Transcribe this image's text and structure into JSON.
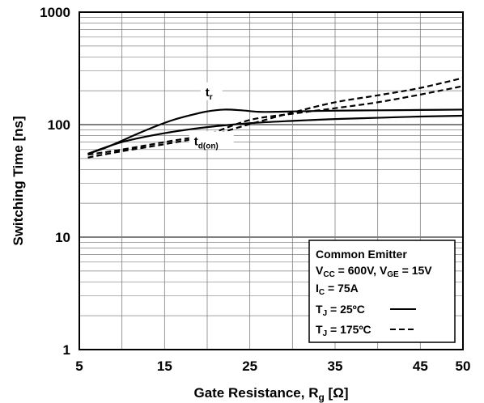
{
  "chart_data": {
    "type": "line",
    "x_scale": "linear",
    "y_scale": "log",
    "xlim": [
      5,
      50
    ],
    "ylim": [
      1,
      1000
    ],
    "grid": true,
    "xlabel": "Gate Resistance, Rg [Ω]",
    "xlabel_parts": {
      "main": "Gate Resistance, R",
      "sub": "g",
      "tail": " [Ω]"
    },
    "ylabel": "Switching Time [ns]",
    "x_ticks": [
      {
        "value": 5,
        "label": "5"
      },
      {
        "value": 15,
        "label": "15"
      },
      {
        "value": 25,
        "label": "25"
      },
      {
        "value": 35,
        "label": "35"
      },
      {
        "value": 45,
        "label": "45"
      },
      {
        "value": 50,
        "label": "50"
      }
    ],
    "y_ticks": [
      {
        "value": 1,
        "label": "1"
      },
      {
        "value": 10,
        "label": "10"
      },
      {
        "value": 100,
        "label": "100"
      },
      {
        "value": 1000,
        "label": "1000"
      }
    ],
    "x_minor": [
      10,
      20,
      30,
      40
    ],
    "series": [
      {
        "label_main": "t",
        "label_sub": "r",
        "tj": "25",
        "style": "solid",
        "x": [
          6,
          8,
          10,
          12,
          14,
          16,
          18,
          20,
          22,
          24,
          26,
          28,
          30,
          35,
          40,
          45,
          50
        ],
        "y": [
          55,
          62,
          72,
          84,
          97,
          110,
          121,
          131,
          136,
          134,
          130,
          130,
          131,
          133,
          134,
          135,
          136
        ]
      },
      {
        "label_main": "t",
        "label_sub": "r",
        "tj": "175",
        "style": "dashed",
        "x": [
          6,
          10,
          15,
          20,
          25,
          30,
          35,
          40,
          45,
          50
        ],
        "y": [
          54,
          60,
          70,
          82,
          110,
          125,
          140,
          158,
          185,
          220
        ]
      },
      {
        "label_main": "t",
        "label_sub": "d(on)",
        "tj": "25",
        "style": "solid",
        "x": [
          6,
          10,
          15,
          20,
          25,
          30,
          35,
          40,
          45,
          50
        ],
        "y": [
          55,
          70,
          84,
          95,
          103,
          108,
          112,
          115,
          118,
          120
        ]
      },
      {
        "label_main": "t",
        "label_sub": "d(on)",
        "tj": "175",
        "style": "dashed",
        "x": [
          6,
          10,
          15,
          20,
          25,
          30,
          35,
          40,
          45,
          50
        ],
        "y": [
          51,
          58,
          67,
          79,
          101,
          128,
          158,
          182,
          212,
          260
        ]
      }
    ],
    "curve_labels": [
      {
        "main": "t",
        "sub": "r",
        "x": 20.5,
        "y": 185
      },
      {
        "main": "t",
        "sub": "d(on)",
        "x": 20.5,
        "y": 68
      }
    ],
    "legend": {
      "placement": "bottom-right",
      "title": "Common Emitter",
      "conditions": [
        {
          "parts": [
            {
              "t": "V",
              "sub": false
            },
            {
              "t": "CC",
              "sub": true
            },
            {
              "t": " = 600V, V",
              "sub": false
            },
            {
              "t": "GE",
              "sub": true
            },
            {
              "t": " = 15V",
              "sub": false
            }
          ]
        },
        {
          "parts": [
            {
              "t": "I",
              "sub": false
            },
            {
              "t": "C",
              "sub": true
            },
            {
              "t": " = 75A",
              "sub": false
            }
          ]
        }
      ],
      "entries": [
        {
          "parts": [
            {
              "t": "T",
              "sub": false
            },
            {
              "t": "J",
              "sub": true
            },
            {
              "t": " = 25ºC",
              "sub": false
            }
          ],
          "style": "solid"
        },
        {
          "parts": [
            {
              "t": "T",
              "sub": false
            },
            {
              "t": "J",
              "sub": true
            },
            {
              "t": " = 175ºC",
              "sub": false
            }
          ],
          "style": "dashed"
        }
      ]
    },
    "colors": {
      "line": "#000000",
      "grid": "#808080",
      "background": "#ffffff"
    }
  }
}
